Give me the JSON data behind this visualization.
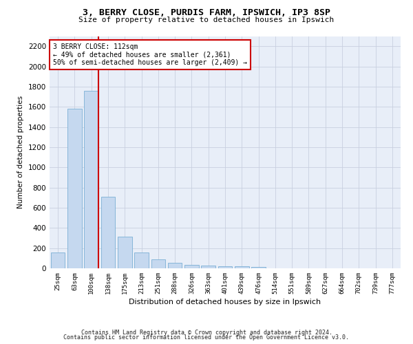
{
  "title1": "3, BERRY CLOSE, PURDIS FARM, IPSWICH, IP3 8SP",
  "title2": "Size of property relative to detached houses in Ipswich",
  "xlabel": "Distribution of detached houses by size in Ipswich",
  "ylabel": "Number of detached properties",
  "categories": [
    "25sqm",
    "63sqm",
    "100sqm",
    "138sqm",
    "175sqm",
    "213sqm",
    "251sqm",
    "288sqm",
    "326sqm",
    "363sqm",
    "401sqm",
    "439sqm",
    "476sqm",
    "514sqm",
    "551sqm",
    "589sqm",
    "627sqm",
    "664sqm",
    "702sqm",
    "739sqm",
    "777sqm"
  ],
  "values": [
    160,
    1580,
    1760,
    710,
    315,
    160,
    90,
    55,
    35,
    25,
    20,
    20,
    15,
    0,
    0,
    0,
    0,
    0,
    0,
    0,
    0
  ],
  "bar_color": "#c5d8ef",
  "bar_edgecolor": "#7aafd4",
  "vline_color": "#cc0000",
  "ylim": [
    0,
    2300
  ],
  "yticks": [
    0,
    200,
    400,
    600,
    800,
    1000,
    1200,
    1400,
    1600,
    1800,
    2000,
    2200
  ],
  "annotation_text": "3 BERRY CLOSE: 112sqm\n← 49% of detached houses are smaller (2,361)\n50% of semi-detached houses are larger (2,409) →",
  "annotation_box_color": "#ffffff",
  "annotation_box_edgecolor": "#cc0000",
  "footer1": "Contains HM Land Registry data © Crown copyright and database right 2024.",
  "footer2": "Contains public sector information licensed under the Open Government Licence v3.0.",
  "plot_bg_color": "#e8eef8",
  "fig_bg_color": "#ffffff",
  "grid_color": "#c8d0e0"
}
